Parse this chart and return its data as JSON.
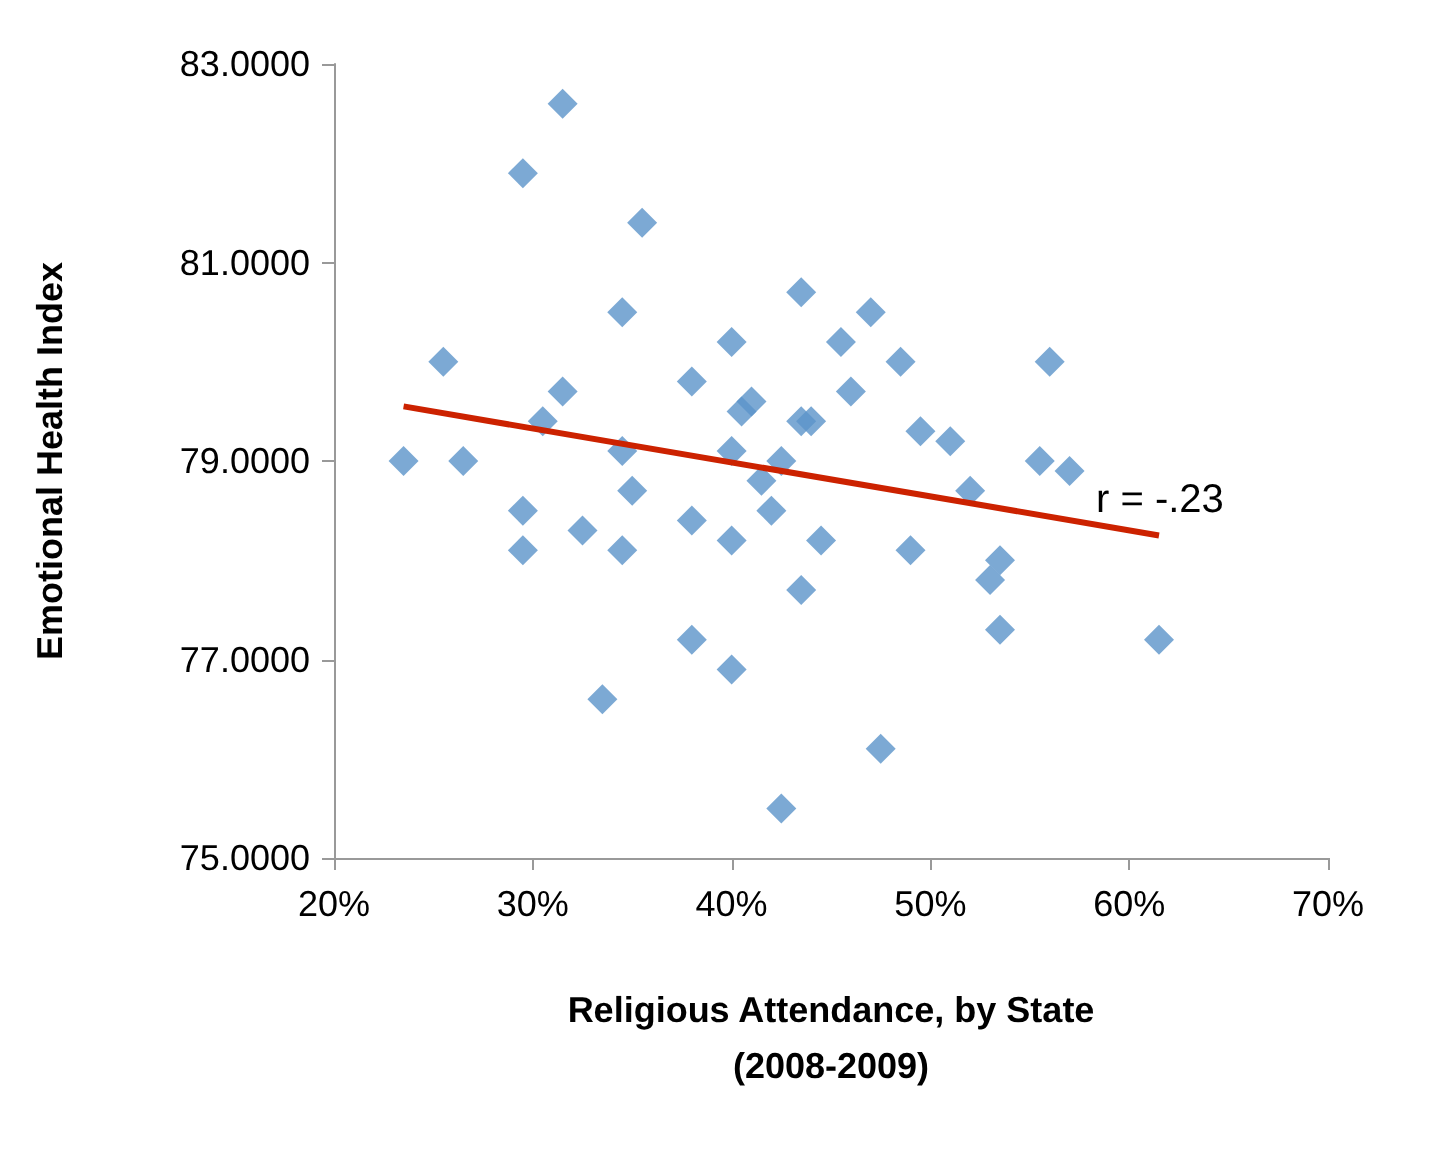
{
  "chart_data": {
    "type": "scatter",
    "xlabel": "Religious Attendance, by State\n(2008-2009)",
    "ylabel": "Emotional Health Index",
    "marker": "diamond",
    "grid": false,
    "xlim": [
      20,
      70
    ],
    "xticks": [
      {
        "value": 20,
        "label": "20%"
      },
      {
        "value": 30,
        "label": "30%"
      },
      {
        "value": 40,
        "label": "40%"
      },
      {
        "value": 50,
        "label": "50%"
      },
      {
        "value": 60,
        "label": "60%"
      },
      {
        "value": 70,
        "label": "70%"
      }
    ],
    "ylim": [
      75,
      83
    ],
    "yticks": [
      {
        "value": 75,
        "label": "75.0000"
      },
      {
        "value": 77,
        "label": "77.0000"
      },
      {
        "value": 79,
        "label": "79.0000"
      },
      {
        "value": 81,
        "label": "81.0000"
      },
      {
        "value": 83,
        "label": "83.0000"
      }
    ],
    "annotations": [
      "r = -.23"
    ],
    "series": [
      {
        "color": "#5b93c9",
        "x": [
          23.5,
          25.5,
          26.5,
          29.5,
          29.5,
          29.5,
          30.5,
          31.5,
          31.5,
          32.5,
          33.5,
          34.5,
          34.5,
          34.5,
          35,
          35.5,
          38,
          38,
          38,
          40,
          40,
          40,
          40,
          40.5,
          41,
          41.5,
          42,
          42.5,
          42.5,
          43.5,
          43.5,
          43.5,
          44,
          44.5,
          45.5,
          46,
          47,
          47.5,
          48.5,
          49,
          49.5,
          51,
          52,
          53,
          53.5,
          53.5,
          55.5,
          56,
          57,
          61.5
        ],
        "values": [
          79.0,
          80.0,
          79.0,
          81.9,
          78.5,
          78.1,
          79.4,
          82.6,
          79.7,
          78.3,
          76.6,
          80.5,
          79.1,
          78.1,
          78.7,
          81.4,
          79.8,
          78.4,
          77.2,
          80.2,
          79.1,
          78.2,
          76.9,
          79.5,
          79.6,
          78.8,
          78.5,
          79.0,
          75.5,
          80.7,
          79.4,
          77.7,
          79.4,
          78.2,
          80.2,
          79.7,
          80.5,
          76.1,
          80.0,
          78.1,
          79.3,
          79.2,
          78.7,
          77.8,
          78.0,
          77.3,
          79.0,
          80.0,
          78.9,
          77.2
        ]
      },
      {
        "type": "line",
        "color": "#cc2200",
        "marker": "none",
        "x": [
          23.5,
          61.5
        ],
        "values": [
          79.55,
          78.25
        ]
      }
    ]
  }
}
